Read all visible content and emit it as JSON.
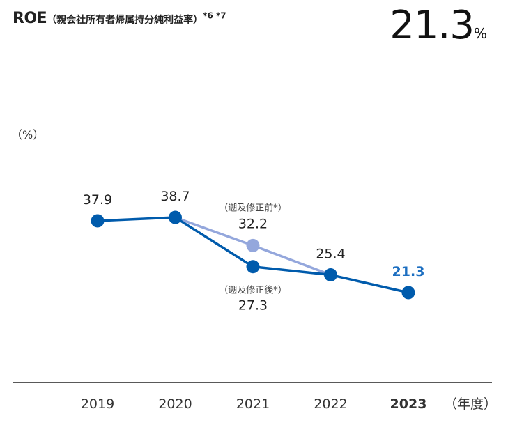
{
  "header": {
    "title": "ROE",
    "subtitle": "（親会社所有者帰属持分純利益率）",
    "notes": "*6 *7",
    "kpi_value": "21.3",
    "kpi_unit": "%"
  },
  "colors": {
    "primary": "#005bac",
    "pre_revision": "#94a7dc",
    "highlight_label": "#1d6fc1",
    "axis": "#222222"
  },
  "chart_data": {
    "type": "line",
    "title": "ROE（親会社所有者帰属持分純利益率）",
    "ylabel": "（%）",
    "xlabel": "（年度）",
    "categories": [
      "2019",
      "2020",
      "2021",
      "2022",
      "2023"
    ],
    "ylim": [
      0,
      50
    ],
    "grid": false,
    "series": [
      {
        "name": "遡及修正後",
        "values": [
          37.9,
          38.7,
          27.3,
          25.4,
          21.3
        ]
      },
      {
        "name": "遡及修正前",
        "values": [
          null,
          38.7,
          32.2,
          25.4,
          null
        ]
      }
    ],
    "annotations": [
      {
        "category": "2021",
        "series": "遡及修正前",
        "note": "（遡及修正前*）",
        "value": "32.2"
      },
      {
        "category": "2021",
        "series": "遡及修正後",
        "note": "（遡及修正後*）",
        "value": "27.3"
      }
    ],
    "highlight_category": "2023"
  }
}
